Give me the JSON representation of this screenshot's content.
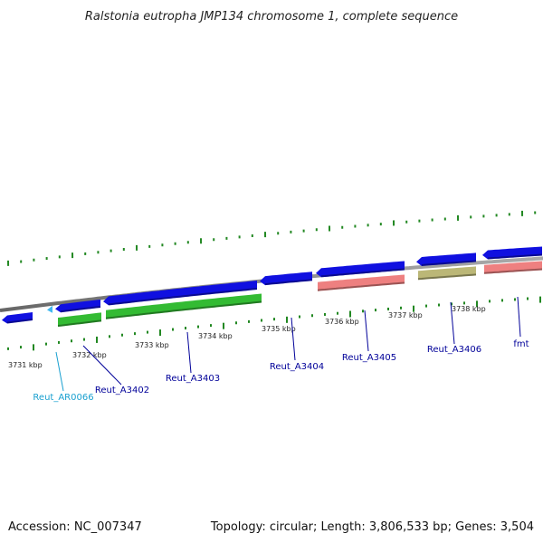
{
  "title": "Ralstonia eutropha JMP134 chromosome 1, complete sequence",
  "footer": {
    "accession": "Accession: NC_007347",
    "stats": "Topology: circular; Length: 3,806,533 bp; Genes: 3,504"
  },
  "colors": {
    "cds": "#1010e0",
    "rna": "#40b8f0",
    "green": "#33bb33",
    "salmon": "#ee8080",
    "olive": "#bbb777",
    "backbone": "#888888",
    "tick": "#228822",
    "label_dark": "#000099",
    "label_light": "#1aa0d0"
  },
  "ruler": [
    {
      "label": "3731 kbp"
    },
    {
      "label": "3732 kbp"
    },
    {
      "label": "3733 kbp"
    },
    {
      "label": "3734 kbp"
    },
    {
      "label": "3735 kbp"
    },
    {
      "label": "3736 kbp"
    },
    {
      "label": "3737 kbp"
    },
    {
      "label": "3738 kbp"
    }
  ],
  "genes": [
    {
      "name": "Reut_AR0066",
      "color_key": "label_light"
    },
    {
      "name": "Reut_A3402",
      "color_key": "label_dark"
    },
    {
      "name": "Reut_A3403",
      "color_key": "label_dark"
    },
    {
      "name": "Reut_A3404",
      "color_key": "label_dark"
    },
    {
      "name": "Reut_A3405",
      "color_key": "label_dark"
    },
    {
      "name": "Reut_A3406",
      "color_key": "label_dark"
    },
    {
      "name": "fmt",
      "color_key": "label_dark"
    }
  ]
}
